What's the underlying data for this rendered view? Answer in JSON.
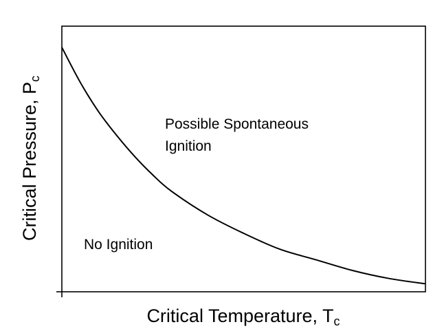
{
  "chart_data": {
    "type": "line",
    "title": "",
    "xlabel": "Critical Temperature, T",
    "xlabel_subscript": "c",
    "ylabel": "Critical Pressure, P",
    "ylabel_subscript": "c",
    "xlim": [
      0,
      1
    ],
    "ylim": [
      0,
      1
    ],
    "grid": false,
    "legend": "none",
    "series": [
      {
        "x": [
          0,
          0.05,
          0.1,
          0.15,
          0.2,
          0.25,
          0.3,
          0.4,
          0.5,
          0.6,
          0.7,
          0.8,
          0.9,
          1.0
        ],
        "values": [
          0.92,
          0.79,
          0.68,
          0.59,
          0.51,
          0.44,
          0.38,
          0.29,
          0.22,
          0.16,
          0.12,
          0.08,
          0.05,
          0.03
        ],
        "color": "#000000"
      }
    ],
    "annotations": [
      {
        "lines": [
          "Possible Spontaneous",
          "Ignition"
        ],
        "x": 0.28,
        "y": 0.6
      },
      {
        "lines": [
          "No Ignition"
        ],
        "x": 0.06,
        "y": 0.17
      }
    ]
  }
}
